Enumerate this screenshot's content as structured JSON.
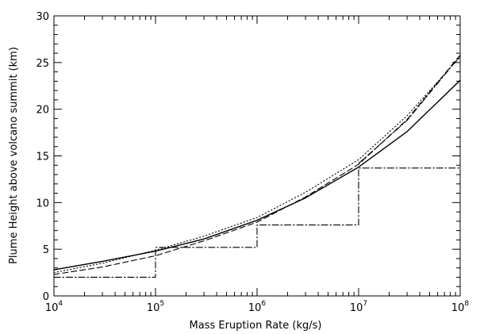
{
  "chart_data": {
    "type": "line",
    "xlabel": "Mass Eruption Rate (kg/s)",
    "ylabel": "Plume Height above volcano summit (km)",
    "xscale": "log",
    "xlim": [
      10000,
      100000000
    ],
    "ylim": [
      0,
      30
    ],
    "x_ticks": [
      {
        "base": "10",
        "exp": "4",
        "value": 10000
      },
      {
        "base": "10",
        "exp": "5",
        "value": 100000
      },
      {
        "base": "10",
        "exp": "6",
        "value": 1000000
      },
      {
        "base": "10",
        "exp": "7",
        "value": 10000000
      },
      {
        "base": "10",
        "exp": "8",
        "value": 100000000
      }
    ],
    "y_ticks": [
      "0",
      "5",
      "10",
      "15",
      "20",
      "25",
      "30"
    ],
    "grid": false,
    "legend": "none",
    "series": [
      {
        "style": "solid",
        "points": [
          [
            10000,
            2.8
          ],
          [
            30000,
            3.7
          ],
          [
            100000,
            4.8
          ],
          [
            300000,
            6.1
          ],
          [
            1000000,
            8.1
          ],
          [
            3000000,
            10.5
          ],
          [
            10000000,
            13.8
          ],
          [
            30000000,
            17.6
          ],
          [
            100000000,
            23.1
          ]
        ]
      },
      {
        "style": "dashed",
        "points": [
          [
            10000,
            2.3
          ],
          [
            30000,
            3.1
          ],
          [
            100000,
            4.3
          ],
          [
            300000,
            5.9
          ],
          [
            1000000,
            7.9
          ],
          [
            3000000,
            10.6
          ],
          [
            10000000,
            14.1
          ],
          [
            30000000,
            18.9
          ],
          [
            100000000,
            25.8
          ]
        ]
      },
      {
        "style": "dotted",
        "points": [
          [
            10000,
            2.5
          ],
          [
            30000,
            3.5
          ],
          [
            100000,
            4.9
          ],
          [
            300000,
            6.4
          ],
          [
            1000000,
            8.4
          ],
          [
            3000000,
            11.1
          ],
          [
            10000000,
            14.6
          ],
          [
            30000000,
            19.3
          ],
          [
            100000000,
            25.6
          ]
        ]
      },
      {
        "style": "dash-dot",
        "points": [
          [
            10000,
            2.0
          ],
          [
            100000,
            2.0
          ],
          [
            100000,
            5.2
          ],
          [
            1000000,
            5.2
          ],
          [
            1000000,
            7.6
          ],
          [
            10000000,
            7.6
          ],
          [
            10000000,
            13.7
          ],
          [
            100000000,
            13.7
          ]
        ]
      },
      {
        "style": "dash-dot",
        "points": [
          [
            10000000,
            14.2
          ],
          [
            30000000,
            18.8
          ],
          [
            100000000,
            25.7
          ]
        ]
      }
    ]
  }
}
